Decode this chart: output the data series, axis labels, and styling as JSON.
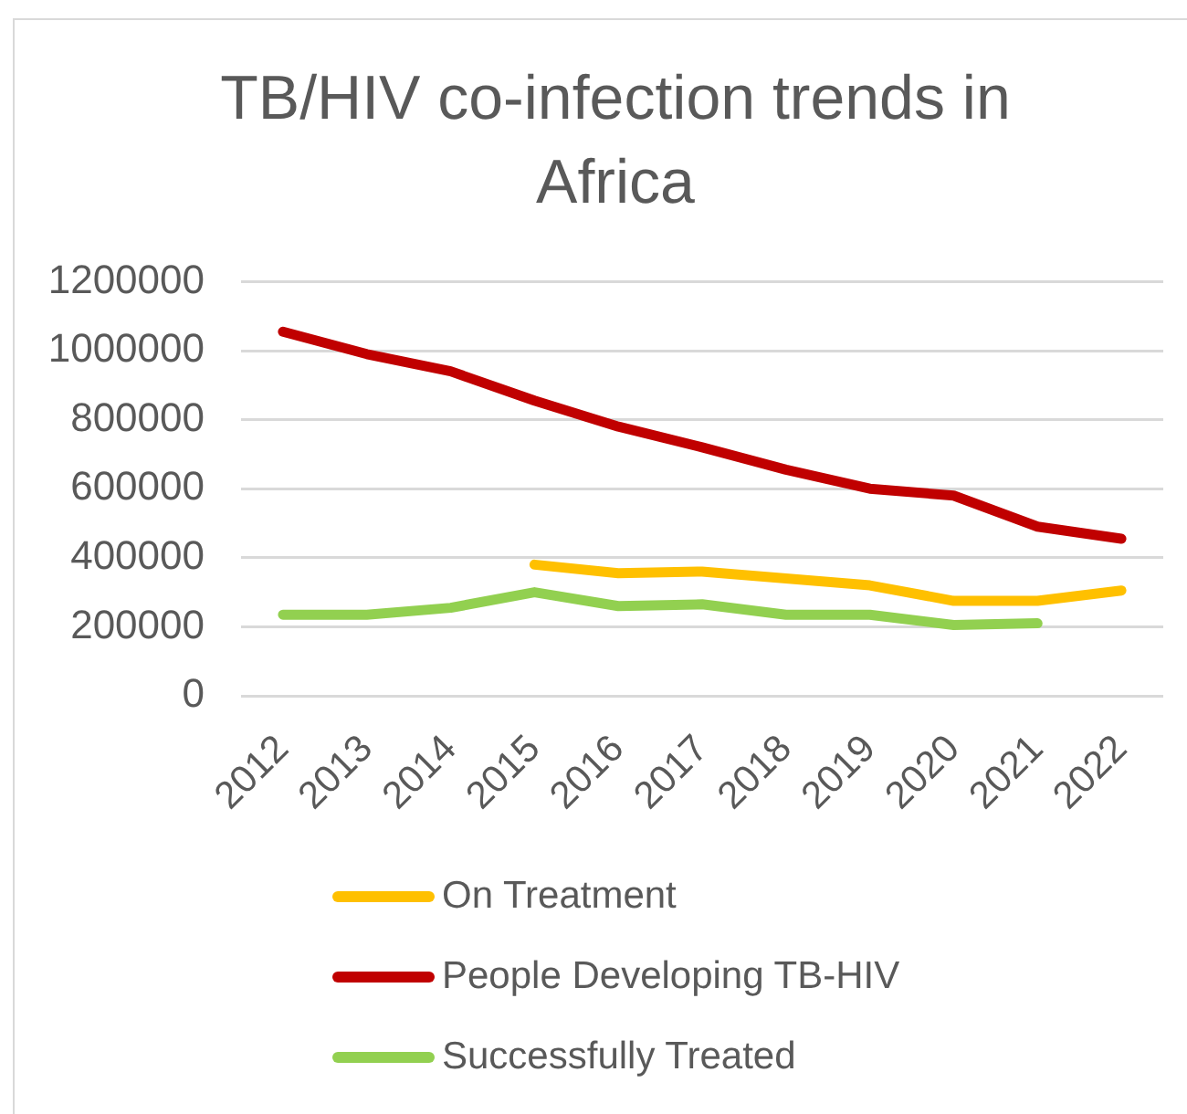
{
  "chart_data": {
    "type": "line",
    "title": "TB/HIV co-infection trends in Africa",
    "categories": [
      "2012",
      "2013",
      "2014",
      "2015",
      "2016",
      "2017",
      "2018",
      "2019",
      "2020",
      "2021",
      "2022"
    ],
    "series": [
      {
        "name": "On Treatment",
        "color": "#ffc000",
        "values": [
          null,
          null,
          null,
          380000,
          355000,
          360000,
          340000,
          320000,
          275000,
          275000,
          305000
        ]
      },
      {
        "name": "People Developing TB-HIV",
        "color": "#c00000",
        "values": [
          1055000,
          990000,
          940000,
          855000,
          780000,
          720000,
          655000,
          600000,
          580000,
          490000,
          455000
        ]
      },
      {
        "name": "Successfully Treated",
        "color": "#92d050",
        "values": [
          235000,
          235000,
          255000,
          300000,
          260000,
          265000,
          235000,
          235000,
          205000,
          210000,
          null
        ]
      }
    ],
    "ylim": [
      0,
      1200000
    ],
    "yticks": [
      0,
      200000,
      400000,
      600000,
      800000,
      1000000,
      1200000
    ],
    "grid": "y",
    "legend": "bottom",
    "marker": "none"
  }
}
